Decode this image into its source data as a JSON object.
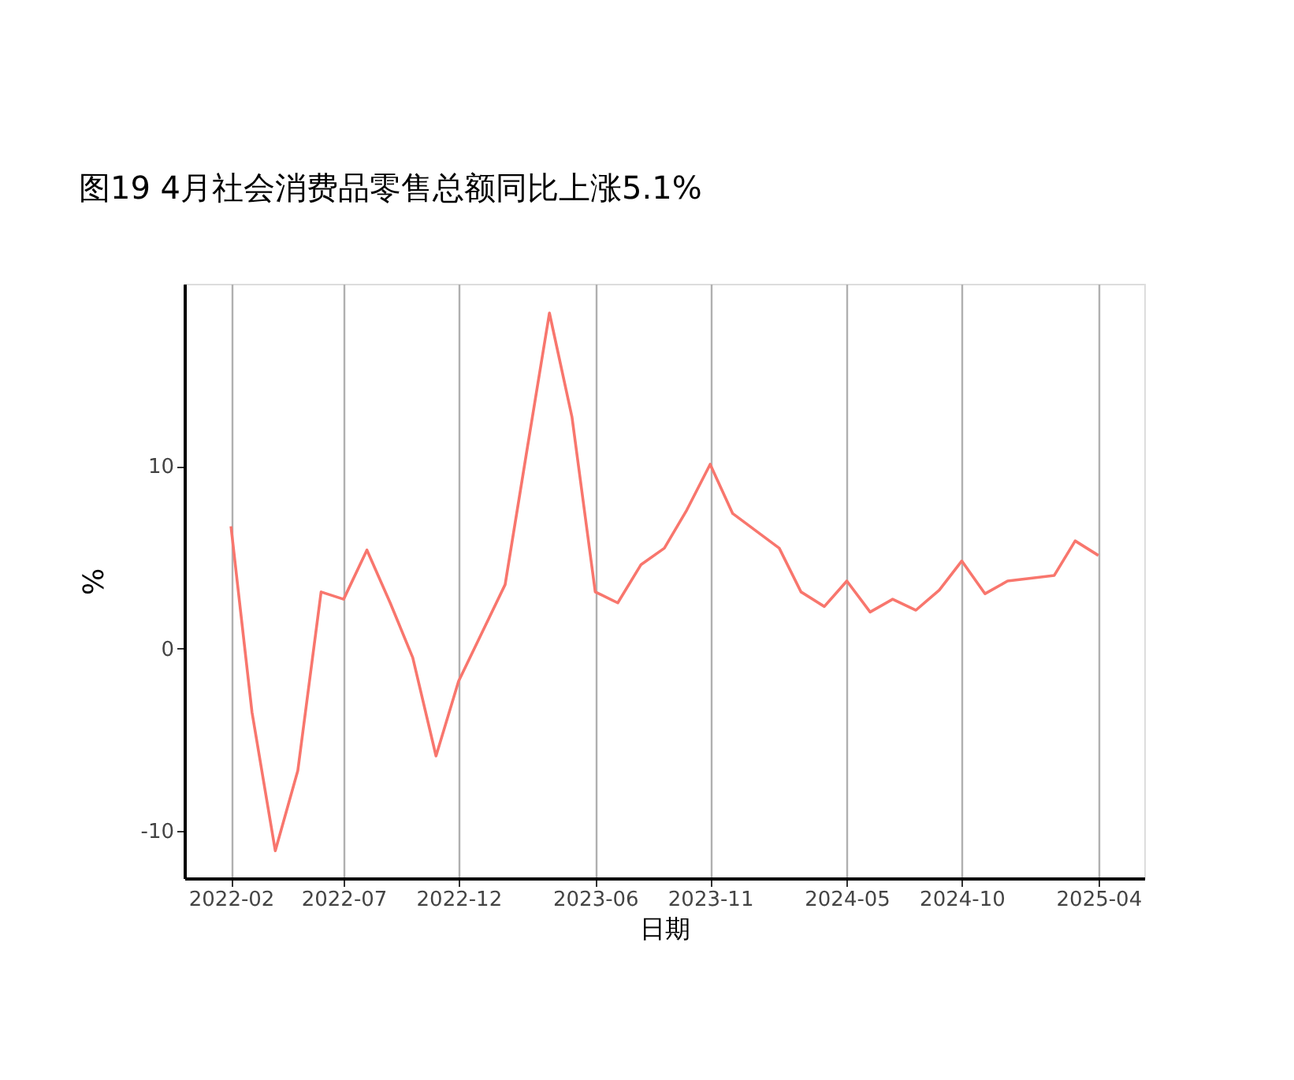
{
  "chart_data": {
    "type": "line",
    "title": "图19 4月社会消费品零售总额同比上涨5.1%",
    "xlabel": "日期",
    "ylabel": "%",
    "x": [
      "2022-02",
      "2022-03",
      "2022-04",
      "2022-05",
      "2022-06",
      "2022-07",
      "2022-08",
      "2022-09",
      "2022-10",
      "2022-11",
      "2022-12",
      "2023-02",
      "2023-03",
      "2023-04",
      "2023-05",
      "2023-06",
      "2023-07",
      "2023-08",
      "2023-09",
      "2023-10",
      "2023-11",
      "2023-12",
      "2024-02",
      "2024-03",
      "2024-04",
      "2024-05",
      "2024-06",
      "2024-07",
      "2024-08",
      "2024-09",
      "2024-10",
      "2024-11",
      "2024-12",
      "2025-02",
      "2025-03",
      "2025-04"
    ],
    "series": [
      {
        "color": "#f8766d",
        "values": [
          6.7,
          -3.5,
          -11.1,
          -6.7,
          3.1,
          2.7,
          5.4,
          2.5,
          -0.5,
          -5.9,
          -1.8,
          3.5,
          10.6,
          18.4,
          12.7,
          3.1,
          2.5,
          4.6,
          5.5,
          7.6,
          10.1,
          7.4,
          5.5,
          3.1,
          2.3,
          3.7,
          2.0,
          2.7,
          2.1,
          3.2,
          4.8,
          3.0,
          3.7,
          4.0,
          5.9,
          5.1
        ]
      }
    ],
    "xlim": [
      "2021-12",
      "2025-06"
    ],
    "xticks": [
      "2022-02",
      "2022-07",
      "2022-12",
      "2023-06",
      "2023-11",
      "2024-05",
      "2024-10",
      "2025-04"
    ],
    "ylim": [
      -12.6,
      20
    ],
    "yticks": [
      -10,
      0,
      10
    ],
    "grid": "x",
    "legend": false,
    "marker": "none",
    "line_style": "solid"
  }
}
